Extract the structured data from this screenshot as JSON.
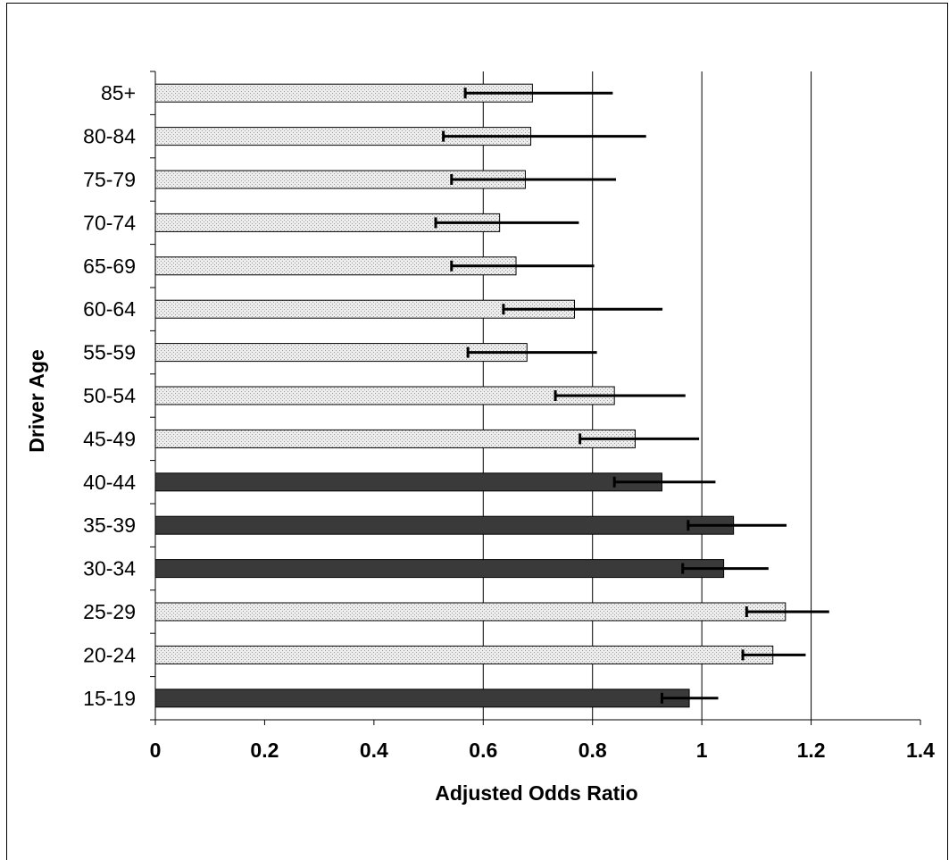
{
  "chart_data": {
    "type": "bar",
    "orientation": "horizontal",
    "title": "",
    "xlabel": "Adjusted Odds Ratio",
    "ylabel": "Driver Age",
    "xlim": [
      0,
      1.4
    ],
    "x_ticks": [
      "0",
      "0.2",
      "0.4",
      "0.6",
      "0.8",
      "1",
      "1.2",
      "1.4"
    ],
    "grid": "vertical lines at 0.6, 0.8, 1, 1.2",
    "categories": [
      "15-19",
      "20-24",
      "25-29",
      "30-34",
      "35-39",
      "40-44",
      "45-49",
      "50-54",
      "55-59",
      "60-64",
      "65-69",
      "70-74",
      "75-79",
      "80-84",
      "85+"
    ],
    "values": [
      0.977,
      1.13,
      1.153,
      1.04,
      1.058,
      0.927,
      0.878,
      0.84,
      0.68,
      0.767,
      0.66,
      0.63,
      0.677,
      0.687,
      0.69
    ],
    "error_lower": [
      0.927,
      1.075,
      1.082,
      0.965,
      0.975,
      0.84,
      0.777,
      0.732,
      0.572,
      0.637,
      0.542,
      0.513,
      0.542,
      0.527,
      0.567
    ],
    "error_upper": [
      1.03,
      1.19,
      1.233,
      1.122,
      1.155,
      1.025,
      0.995,
      0.97,
      0.808,
      0.928,
      0.803,
      0.775,
      0.843,
      0.898,
      0.837
    ],
    "bar_style": [
      "dark",
      "dotted",
      "dotted",
      "dark",
      "dark",
      "dark",
      "dotted",
      "dotted",
      "dotted",
      "dotted",
      "dotted",
      "dotted",
      "dotted",
      "dotted",
      "dotted"
    ],
    "colors": {
      "dark": "#3a3a3a",
      "dotted_fill": "#ededed",
      "dotted_dot": "#9a9a9a",
      "edge": "#000000",
      "grid": "#000000"
    }
  }
}
